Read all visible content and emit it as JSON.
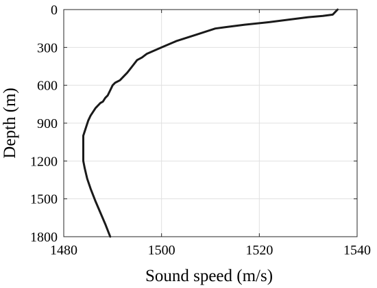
{
  "chart_data": {
    "type": "line",
    "title": "",
    "xlabel": "Sound speed (m/s)",
    "ylabel": "Depth (m)",
    "xlim": [
      1480,
      1540
    ],
    "ylim": [
      0,
      1800
    ],
    "y_reversed": true,
    "x_ticks": [
      "1480",
      "1500",
      "1520",
      "1540"
    ],
    "y_ticks": [
      "0",
      "300",
      "600",
      "900",
      "1200",
      "1500",
      "1800"
    ],
    "grid": true,
    "legend": "none",
    "line_color": "#1a1a1a",
    "series": [
      {
        "x": [
          1536.0,
          1535.5,
          1535.0,
          1533.0,
          1530.0,
          1526.0,
          1522.0,
          1517.0,
          1513.0,
          1511.0,
          1507.0,
          1503.0,
          1500.0,
          1497.0,
          1496.0,
          1495.0,
          1494.0,
          1493.0,
          1492.0,
          1491.5,
          1490.5,
          1490.0,
          1489.5,
          1489.0,
          1488.5,
          1488.0,
          1487.5,
          1486.5,
          1485.5,
          1485.0,
          1484.5,
          1484.0,
          1484.0,
          1484.0,
          1484.3,
          1484.8,
          1485.5,
          1486.5,
          1487.5,
          1488.5,
          1489.5
        ],
        "y": [
          0,
          20,
          40,
          50,
          60,
          80,
          100,
          120,
          140,
          150,
          200,
          250,
          300,
          350,
          380,
          400,
          450,
          500,
          540,
          560,
          580,
          600,
          640,
          680,
          700,
          730,
          740,
          780,
          840,
          880,
          940,
          1000,
          1100,
          1200,
          1260,
          1340,
          1420,
          1520,
          1610,
          1700,
          1800
        ]
      }
    ]
  }
}
